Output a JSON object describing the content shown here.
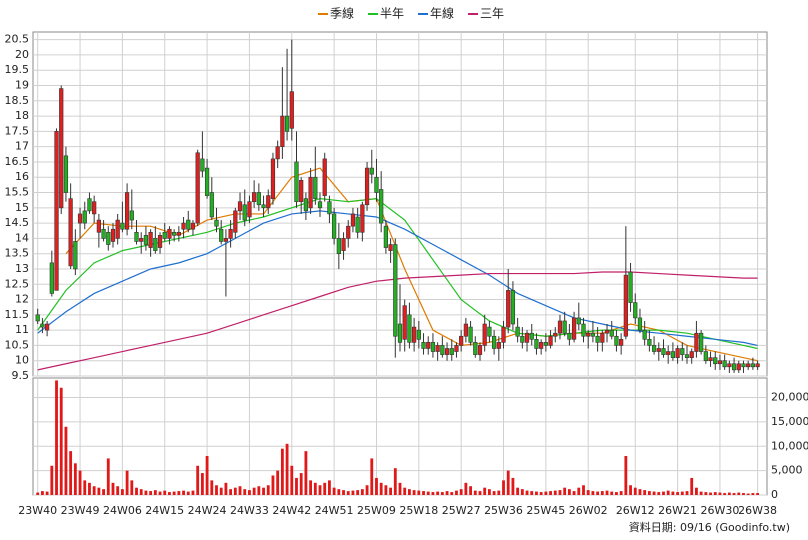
{
  "chart_data": {
    "type": "candlestick",
    "footer": "資料日期: 09/16 (Goodinfo.tw)",
    "up_color": "#e02020",
    "down_color": "#22b022",
    "wick_color": "#333333",
    "grid": true,
    "ylim": [
      9.5,
      20.75
    ],
    "yticks": [
      9.5,
      10,
      10.5,
      11,
      11.5,
      12,
      12.5,
      13,
      13.5,
      14,
      14.5,
      15,
      15.5,
      16,
      16.5,
      17,
      17.5,
      18,
      18.5,
      19,
      19.5,
      20,
      20.5
    ],
    "xlim": [
      -1,
      155
    ],
    "xticks": [
      {
        "value": 0,
        "label": "23W40"
      },
      {
        "value": 9,
        "label": "23W49"
      },
      {
        "value": 18,
        "label": "24W06"
      },
      {
        "value": 27,
        "label": "24W15"
      },
      {
        "value": 36,
        "label": "24W24"
      },
      {
        "value": 45,
        "label": "24W33"
      },
      {
        "value": 54,
        "label": "24W42"
      },
      {
        "value": 63,
        "label": "24W51"
      },
      {
        "value": 72,
        "label": "25W09"
      },
      {
        "value": 81,
        "label": "25W18"
      },
      {
        "value": 90,
        "label": "25W27"
      },
      {
        "value": 99,
        "label": "25W36"
      },
      {
        "value": 108,
        "label": "25W45"
      },
      {
        "value": 117,
        "label": "26W02"
      },
      {
        "value": 127,
        "label": "26W12"
      },
      {
        "value": 136,
        "label": "26W21"
      },
      {
        "value": 145,
        "label": "26W30"
      },
      {
        "value": 153,
        "label": "26W38"
      }
    ],
    "candles": [
      [
        11.5,
        11.7,
        11.2,
        11.3
      ],
      [
        11.2,
        11.4,
        10.9,
        11.1
      ],
      [
        11.0,
        11.3,
        10.8,
        11.2
      ],
      [
        13.2,
        13.6,
        12.1,
        12.2
      ],
      [
        12.3,
        17.6,
        12.3,
        17.5
      ],
      [
        15.0,
        19.0,
        14.8,
        18.9
      ],
      [
        16.7,
        17.0,
        15.2,
        15.5
      ],
      [
        13.1,
        15.8,
        13.0,
        15.3
      ],
      [
        13.9,
        14.3,
        12.8,
        13.0
      ],
      [
        14.5,
        15.0,
        14.0,
        14.8
      ],
      [
        14.9,
        15.2,
        14.3,
        14.5
      ],
      [
        15.3,
        15.5,
        14.8,
        14.9
      ],
      [
        14.8,
        15.4,
        14.5,
        15.2
      ],
      [
        14.2,
        14.8,
        13.7,
        14.6
      ],
      [
        14.3,
        14.6,
        13.9,
        14.0
      ],
      [
        14.2,
        14.4,
        13.6,
        13.8
      ],
      [
        13.9,
        14.5,
        13.7,
        14.3
      ],
      [
        14.0,
        14.8,
        13.8,
        14.6
      ],
      [
        14.5,
        15.2,
        14.2,
        14.3
      ],
      [
        14.3,
        15.8,
        14.1,
        15.5
      ],
      [
        14.9,
        15.6,
        14.3,
        14.6
      ],
      [
        14.2,
        14.6,
        13.8,
        13.9
      ],
      [
        13.9,
        14.2,
        13.5,
        14.0
      ],
      [
        14.1,
        14.4,
        13.6,
        13.8
      ],
      [
        13.7,
        14.3,
        13.4,
        14.2
      ],
      [
        14.0,
        14.4,
        13.5,
        13.6
      ],
      [
        13.7,
        14.2,
        13.5,
        14.1
      ],
      [
        14.2,
        14.5,
        13.9,
        14.0
      ],
      [
        14.0,
        14.4,
        13.8,
        14.3
      ],
      [
        14.2,
        14.3,
        13.9,
        14.1
      ],
      [
        14.1,
        14.4,
        13.9,
        14.2
      ],
      [
        14.3,
        14.7,
        14.0,
        14.5
      ],
      [
        14.6,
        14.9,
        14.2,
        14.3
      ],
      [
        14.3,
        14.6,
        14.1,
        14.5
      ],
      [
        14.5,
        16.9,
        14.4,
        16.8
      ],
      [
        16.6,
        17.5,
        16.0,
        16.2
      ],
      [
        16.3,
        16.6,
        15.3,
        15.4
      ],
      [
        15.5,
        16.0,
        14.6,
        14.7
      ],
      [
        14.6,
        15.0,
        14.2,
        14.4
      ],
      [
        14.3,
        14.6,
        13.8,
        13.9
      ],
      [
        13.9,
        14.3,
        12.1,
        14.0
      ],
      [
        14.0,
        14.6,
        13.7,
        14.3
      ],
      [
        14.2,
        15.0,
        14.0,
        14.9
      ],
      [
        14.9,
        15.5,
        14.6,
        15.2
      ],
      [
        15.1,
        15.6,
        14.4,
        14.6
      ],
      [
        14.7,
        15.4,
        14.5,
        15.2
      ],
      [
        15.2,
        15.9,
        15.0,
        15.5
      ],
      [
        15.5,
        15.8,
        14.9,
        15.1
      ],
      [
        15.1,
        15.4,
        14.7,
        15.0
      ],
      [
        15.0,
        15.6,
        14.8,
        15.4
      ],
      [
        15.3,
        16.8,
        15.1,
        16.6
      ],
      [
        16.6,
        17.2,
        16.3,
        17.0
      ],
      [
        17.0,
        19.6,
        16.6,
        18.0
      ],
      [
        18.0,
        20.2,
        17.2,
        17.5
      ],
      [
        17.6,
        20.5,
        17.2,
        18.8
      ],
      [
        16.5,
        17.5,
        15.0,
        15.2
      ],
      [
        15.2,
        16.0,
        14.8,
        15.9
      ],
      [
        15.3,
        15.5,
        14.6,
        14.9
      ],
      [
        15.0,
        16.3,
        14.8,
        16.0
      ],
      [
        16.0,
        17.0,
        15.1,
        15.3
      ],
      [
        15.2,
        15.5,
        14.7,
        15.0
      ],
      [
        15.4,
        16.8,
        15.2,
        16.6
      ],
      [
        15.2,
        15.4,
        14.5,
        14.8
      ],
      [
        14.8,
        15.0,
        13.8,
        14.0
      ],
      [
        14.0,
        14.5,
        13.0,
        13.5
      ],
      [
        13.6,
        14.2,
        13.3,
        14.0
      ],
      [
        14.0,
        14.6,
        13.7,
        14.4
      ],
      [
        14.4,
        15.0,
        14.2,
        14.8
      ],
      [
        14.7,
        15.0,
        14.0,
        14.2
      ],
      [
        14.2,
        15.2,
        13.9,
        15.1
      ],
      [
        15.1,
        16.5,
        14.9,
        16.3
      ],
      [
        16.3,
        16.9,
        15.8,
        16.1
      ],
      [
        16.0,
        16.6,
        15.2,
        15.5
      ],
      [
        15.6,
        16.2,
        14.2,
        14.5
      ],
      [
        14.4,
        14.6,
        13.5,
        13.7
      ],
      [
        13.6,
        14.0,
        13.2,
        13.8
      ],
      [
        13.8,
        14.0,
        10.1,
        10.8
      ],
      [
        11.2,
        12.5,
        10.3,
        10.6
      ],
      [
        10.7,
        12.0,
        10.3,
        11.8
      ],
      [
        11.5,
        11.9,
        10.4,
        10.6
      ],
      [
        10.6,
        11.4,
        10.3,
        11.1
      ],
      [
        11.0,
        11.3,
        10.4,
        10.7
      ],
      [
        10.6,
        10.9,
        10.2,
        10.4
      ],
      [
        10.4,
        10.8,
        10.2,
        10.6
      ],
      [
        10.6,
        10.9,
        10.1,
        10.3
      ],
      [
        10.3,
        10.6,
        10.0,
        10.5
      ],
      [
        10.5,
        10.8,
        10.1,
        10.2
      ],
      [
        10.2,
        10.6,
        10.0,
        10.4
      ],
      [
        10.4,
        10.7,
        10.0,
        10.2
      ],
      [
        10.3,
        10.6,
        10.1,
        10.5
      ],
      [
        10.5,
        11.0,
        10.3,
        10.8
      ],
      [
        10.8,
        11.4,
        10.6,
        11.2
      ],
      [
        11.1,
        11.3,
        10.5,
        10.6
      ],
      [
        10.6,
        10.8,
        10.1,
        10.2
      ],
      [
        10.2,
        10.6,
        10.0,
        10.5
      ],
      [
        10.5,
        11.5,
        10.3,
        11.2
      ],
      [
        11.1,
        11.3,
        10.6,
        10.8
      ],
      [
        10.8,
        11.0,
        10.2,
        10.4
      ],
      [
        10.4,
        10.8,
        10.0,
        10.6
      ],
      [
        10.6,
        11.3,
        10.4,
        11.1
      ],
      [
        11.1,
        13.0,
        10.9,
        12.3
      ],
      [
        12.3,
        12.6,
        11.0,
        11.2
      ],
      [
        11.1,
        11.4,
        10.6,
        10.8
      ],
      [
        10.8,
        11.1,
        10.4,
        10.6
      ],
      [
        10.6,
        11.0,
        10.3,
        10.9
      ],
      [
        10.9,
        11.2,
        10.5,
        10.7
      ],
      [
        10.7,
        10.9,
        10.2,
        10.4
      ],
      [
        10.4,
        10.7,
        10.2,
        10.6
      ],
      [
        10.6,
        10.9,
        10.3,
        10.5
      ],
      [
        10.5,
        11.0,
        10.4,
        10.8
      ],
      [
        10.8,
        11.1,
        10.6,
        10.9
      ],
      [
        10.9,
        11.5,
        10.7,
        11.3
      ],
      [
        11.3,
        11.6,
        10.8,
        10.9
      ],
      [
        10.9,
        11.2,
        10.5,
        10.7
      ],
      [
        10.7,
        11.6,
        10.6,
        11.4
      ],
      [
        11.4,
        11.9,
        11.0,
        11.2
      ],
      [
        11.2,
        11.4,
        10.6,
        10.8
      ],
      [
        10.8,
        11.0,
        10.4,
        10.9
      ],
      [
        10.9,
        11.3,
        10.6,
        10.8
      ],
      [
        10.8,
        11.1,
        10.3,
        10.6
      ],
      [
        10.6,
        11.0,
        10.3,
        10.9
      ],
      [
        10.9,
        11.2,
        10.6,
        11.0
      ],
      [
        11.0,
        11.3,
        10.7,
        10.8
      ],
      [
        10.8,
        11.0,
        10.3,
        10.5
      ],
      [
        10.5,
        10.9,
        10.2,
        10.7
      ],
      [
        10.8,
        14.4,
        10.7,
        12.8
      ],
      [
        12.9,
        13.2,
        11.6,
        11.9
      ],
      [
        11.9,
        12.2,
        11.2,
        11.4
      ],
      [
        11.4,
        11.7,
        10.9,
        11.0
      ],
      [
        11.0,
        11.3,
        10.5,
        10.7
      ],
      [
        10.7,
        11.0,
        10.3,
        10.5
      ],
      [
        10.5,
        10.8,
        10.2,
        10.3
      ],
      [
        10.3,
        10.6,
        10.0,
        10.4
      ],
      [
        10.4,
        10.7,
        10.1,
        10.2
      ],
      [
        10.2,
        10.5,
        9.9,
        10.3
      ],
      [
        10.3,
        10.6,
        10.0,
        10.1
      ],
      [
        10.1,
        10.5,
        9.9,
        10.4
      ],
      [
        10.4,
        10.6,
        10.0,
        10.2
      ],
      [
        10.2,
        10.5,
        9.9,
        10.1
      ],
      [
        10.1,
        10.4,
        9.9,
        10.3
      ],
      [
        10.3,
        11.3,
        10.1,
        10.9
      ],
      [
        10.9,
        11.0,
        10.2,
        10.3
      ],
      [
        10.3,
        10.5,
        9.9,
        10.0
      ],
      [
        10.0,
        10.3,
        9.8,
        10.1
      ],
      [
        10.1,
        10.3,
        9.7,
        9.9
      ],
      [
        9.9,
        10.2,
        9.7,
        10.0
      ],
      [
        10.0,
        10.2,
        9.7,
        9.8
      ],
      [
        9.8,
        10.0,
        9.6,
        9.9
      ],
      [
        9.9,
        10.1,
        9.6,
        9.7
      ],
      [
        9.7,
        10.0,
        9.6,
        9.9
      ],
      [
        9.9,
        10.0,
        9.6,
        9.8
      ],
      [
        9.8,
        10.0,
        9.7,
        9.9
      ],
      [
        9.9,
        10.1,
        9.7,
        9.8
      ],
      [
        9.8,
        10.0,
        9.7,
        9.9
      ]
    ],
    "x": [
      0,
      6,
      12,
      18,
      24,
      30,
      36,
      42,
      48,
      54,
      60,
      66,
      72,
      78,
      84,
      90,
      96,
      102,
      108,
      114,
      120,
      126,
      132,
      138,
      144,
      150,
      153
    ],
    "series": [
      {
        "name": "季線",
        "color": "#e07b00",
        "values": [
          null,
          13.5,
          14.5,
          14.4,
          14.4,
          14.1,
          14.6,
          14.8,
          14.8,
          16.0,
          16.3,
          15.2,
          15.3,
          13.0,
          11.0,
          10.5,
          10.6,
          10.9,
          10.8,
          10.9,
          10.9,
          11.2,
          11.0,
          10.5,
          10.3,
          10.1,
          10.0
        ]
      },
      {
        "name": "半年",
        "color": "#22c022",
        "values": [
          11.0,
          12.3,
          13.2,
          13.6,
          13.8,
          14.0,
          14.2,
          14.5,
          14.7,
          15.0,
          15.3,
          15.2,
          15.3,
          14.6,
          13.3,
          12.0,
          11.3,
          10.9,
          10.8,
          10.9,
          11.0,
          11.0,
          11.0,
          10.9,
          10.7,
          10.5,
          10.4
        ]
      },
      {
        "name": "年線",
        "color": "#1f6fd0",
        "values": [
          10.9,
          11.6,
          12.2,
          12.6,
          13.0,
          13.2,
          13.5,
          14.0,
          14.5,
          14.8,
          14.9,
          14.8,
          14.7,
          14.3,
          13.8,
          13.3,
          12.8,
          12.2,
          11.8,
          11.4,
          11.2,
          11.0,
          10.9,
          10.8,
          10.7,
          10.6,
          10.5
        ]
      },
      {
        "name": "三年",
        "color": "#c0206a",
        "values": [
          9.7,
          9.9,
          10.1,
          10.3,
          10.5,
          10.7,
          10.9,
          11.2,
          11.5,
          11.8,
          12.1,
          12.4,
          12.6,
          12.7,
          12.75,
          12.8,
          12.85,
          12.85,
          12.85,
          12.85,
          12.9,
          12.9,
          12.85,
          12.8,
          12.75,
          12.7,
          12.7
        ]
      }
    ],
    "volume": {
      "color": "#e01818",
      "ylim": [
        0,
        24000
      ],
      "yticks": [
        0,
        {
          "value": 5000,
          "label": "5,000"
        },
        {
          "value": 10000,
          "label": "10,000"
        },
        {
          "value": 15000,
          "label": "15,000"
        },
        {
          "value": 20000,
          "label": "20,000"
        }
      ],
      "values": [
        500,
        800,
        700,
        6000,
        23500,
        22000,
        14000,
        9000,
        6500,
        5000,
        3000,
        2500,
        1800,
        1500,
        1200,
        7500,
        2500,
        1800,
        1200,
        5000,
        3000,
        1500,
        1200,
        900,
        800,
        1000,
        700,
        900,
        600,
        700,
        800,
        900,
        700,
        900,
        6000,
        4500,
        8000,
        3000,
        2000,
        1500,
        2500,
        1200,
        1500,
        1800,
        1200,
        1000,
        1500,
        1800,
        1500,
        2000,
        4000,
        5000,
        9500,
        10500,
        6000,
        3500,
        4500,
        9000,
        3000,
        2500,
        2000,
        2500,
        3000,
        1500,
        1200,
        1000,
        800,
        900,
        1000,
        1200,
        2000,
        7500,
        3500,
        2500,
        2000,
        1500,
        5500,
        2500,
        1500,
        1200,
        1000,
        900,
        800,
        700,
        600,
        700,
        600,
        800,
        600,
        900,
        1200,
        2500,
        1800,
        900,
        800,
        1500,
        1200,
        800,
        900,
        3000,
        5000,
        3500,
        1500,
        1200,
        900,
        800,
        700,
        600,
        700,
        800,
        900,
        1000,
        1500,
        1200,
        800,
        1500,
        2000,
        1000,
        800,
        700,
        800,
        900,
        700,
        600,
        800,
        8000,
        2000,
        1500,
        1200,
        1000,
        800,
        700,
        600,
        700,
        900,
        700,
        600,
        700,
        800,
        3500,
        1500,
        700,
        600,
        500,
        600,
        500,
        400,
        500,
        400,
        500,
        400,
        300,
        400,
        400
      ]
    }
  }
}
